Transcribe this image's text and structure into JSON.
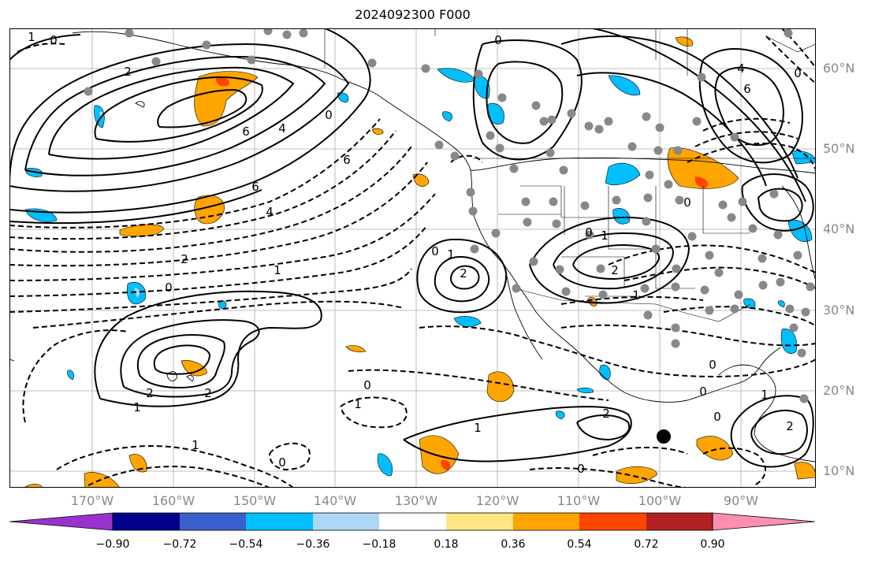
{
  "title": "2024092300 F000",
  "lat_labels": [
    "60°N",
    "50°N",
    "40°N",
    "30°N",
    "20°N",
    "10°N"
  ],
  "lon_labels": [
    "170°W",
    "160°W",
    "150°W",
    "140°W",
    "130°W",
    "120°W",
    "110°W",
    "100°W",
    "90°W"
  ],
  "colorbar": {
    "tick_labels": [
      "−0.90",
      "−0.72",
      "−0.54",
      "−0.36",
      "−0.18",
      "0.18",
      "0.36",
      "0.54",
      "0.72",
      "0.90"
    ],
    "colors": [
      "#9932cc",
      "#00008b",
      "#3a5fcd",
      "#00bfff",
      "#add8f5",
      "#ffffff",
      "#ffe680",
      "#ffa500",
      "#ff4500",
      "#b22222",
      "#ff8fb1"
    ]
  },
  "contour_labels": [
    "1",
    "0",
    "2",
    "4",
    "6",
    "6",
    "0",
    "0",
    "6",
    "4",
    "2",
    "0",
    "1",
    "0",
    "1",
    "2",
    "0",
    "0",
    "1",
    "2",
    "1",
    "0",
    "1",
    "1",
    "1",
    "2",
    "2",
    "0",
    "0",
    "1",
    "2",
    "0",
    "0",
    "0",
    "1",
    "2",
    "6",
    "4",
    "0"
  ]
}
